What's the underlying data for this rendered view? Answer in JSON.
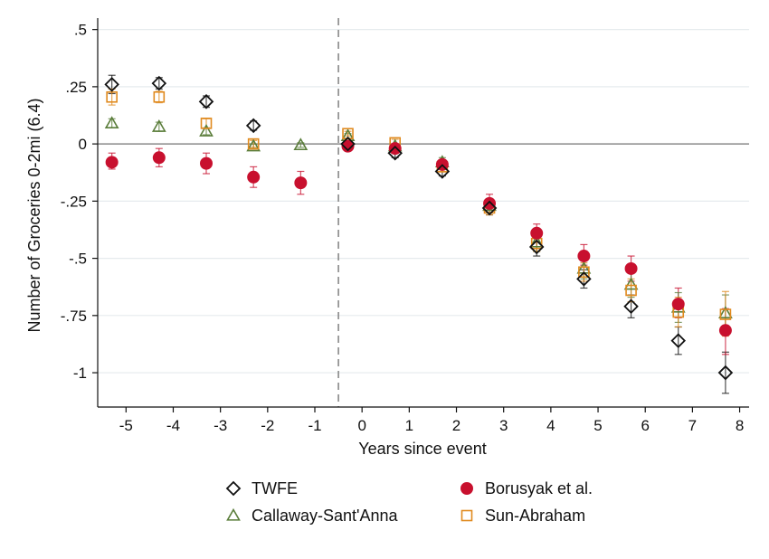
{
  "chart_data": {
    "type": "scatter",
    "title": "",
    "xlabel": "Years since event",
    "ylabel": "Number of Groceries 0-2mi (6.4)",
    "xlim": [
      -5.6,
      8.2
    ],
    "ylim": [
      -1.15,
      0.55
    ],
    "x_ticks": [
      -5,
      -4,
      -3,
      -2,
      -1,
      0,
      1,
      2,
      3,
      4,
      5,
      6,
      7,
      8
    ],
    "x_tick_labels": [
      "-5",
      "-4",
      "-3",
      "-2",
      "-1",
      "0",
      "1",
      "2",
      "3",
      "4",
      "5",
      "6",
      "7",
      "8"
    ],
    "y_ticks": [
      0.5,
      0.25,
      0,
      -0.25,
      -0.5,
      -0.75,
      -1
    ],
    "y_tick_labels": [
      ".5",
      ".25",
      "0",
      "-.25",
      "-.5",
      "-.75",
      "-1"
    ],
    "grid": true,
    "zero_line": true,
    "event_line_x": -0.5,
    "legend_position": "bottom",
    "series": [
      {
        "name": "TWFE",
        "marker": "diamond",
        "color": "#111111",
        "points": [
          {
            "x": -5.3,
            "y": 0.26,
            "lo": 0.22,
            "hi": 0.3
          },
          {
            "x": -4.3,
            "y": 0.265,
            "lo": 0.24,
            "hi": 0.29
          },
          {
            "x": -3.3,
            "y": 0.185,
            "lo": 0.16,
            "hi": 0.21
          },
          {
            "x": -2.3,
            "y": 0.08,
            "lo": 0.06,
            "hi": 0.1
          },
          {
            "x": -0.3,
            "y": 0.0,
            "lo": -0.01,
            "hi": 0.01
          },
          {
            "x": 0.7,
            "y": -0.04,
            "lo": -0.06,
            "hi": -0.02
          },
          {
            "x": 1.7,
            "y": -0.12,
            "lo": -0.14,
            "hi": -0.1
          },
          {
            "x": 2.7,
            "y": -0.28,
            "lo": -0.31,
            "hi": -0.25
          },
          {
            "x": 3.7,
            "y": -0.45,
            "lo": -0.49,
            "hi": -0.41
          },
          {
            "x": 4.7,
            "y": -0.59,
            "lo": -0.63,
            "hi": -0.55
          },
          {
            "x": 5.7,
            "y": -0.71,
            "lo": -0.76,
            "hi": -0.66
          },
          {
            "x": 6.7,
            "y": -0.86,
            "lo": -0.92,
            "hi": -0.8
          },
          {
            "x": 7.7,
            "y": -1.0,
            "lo": -1.09,
            "hi": -0.91
          }
        ]
      },
      {
        "name": "Borusyak et al.",
        "marker": "circle",
        "color": "#c8102e",
        "points": [
          {
            "x": -5.3,
            "y": -0.08,
            "lo": -0.11,
            "hi": -0.04
          },
          {
            "x": -4.3,
            "y": -0.06,
            "lo": -0.1,
            "hi": -0.02
          },
          {
            "x": -3.3,
            "y": -0.085,
            "lo": -0.13,
            "hi": -0.04
          },
          {
            "x": -2.3,
            "y": -0.145,
            "lo": -0.19,
            "hi": -0.1
          },
          {
            "x": -1.3,
            "y": -0.17,
            "lo": -0.22,
            "hi": -0.12
          },
          {
            "x": -0.3,
            "y": -0.01,
            "lo": -0.02,
            "hi": 0.0
          },
          {
            "x": 0.7,
            "y": -0.02,
            "lo": -0.04,
            "hi": 0.0
          },
          {
            "x": 1.7,
            "y": -0.09,
            "lo": -0.11,
            "hi": -0.07
          },
          {
            "x": 2.7,
            "y": -0.26,
            "lo": -0.29,
            "hi": -0.22
          },
          {
            "x": 3.7,
            "y": -0.39,
            "lo": -0.43,
            "hi": -0.35
          },
          {
            "x": 4.7,
            "y": -0.49,
            "lo": -0.53,
            "hi": -0.44
          },
          {
            "x": 5.7,
            "y": -0.545,
            "lo": -0.6,
            "hi": -0.49
          },
          {
            "x": 6.7,
            "y": -0.7,
            "lo": -0.76,
            "hi": -0.63
          },
          {
            "x": 7.7,
            "y": -0.815,
            "lo": -0.92,
            "hi": -0.72
          }
        ]
      },
      {
        "name": "Callaway-Sant'Anna",
        "marker": "triangle",
        "color": "#5a7d3a",
        "points": [
          {
            "x": -5.3,
            "y": 0.09,
            "lo": 0.07,
            "hi": 0.11
          },
          {
            "x": -4.3,
            "y": 0.075,
            "lo": 0.055,
            "hi": 0.095
          },
          {
            "x": -3.3,
            "y": 0.055,
            "lo": 0.04,
            "hi": 0.07
          },
          {
            "x": -2.3,
            "y": -0.01,
            "lo": -0.02,
            "hi": 0.0
          },
          {
            "x": -1.3,
            "y": -0.005,
            "lo": -0.015,
            "hi": 0.005
          },
          {
            "x": -0.3,
            "y": 0.035,
            "lo": 0.025,
            "hi": 0.045
          },
          {
            "x": 0.7,
            "y": -0.01,
            "lo": -0.02,
            "hi": 0.0
          },
          {
            "x": 1.7,
            "y": -0.08,
            "lo": -0.1,
            "hi": -0.06
          },
          {
            "x": 2.7,
            "y": -0.27,
            "lo": -0.3,
            "hi": -0.24
          },
          {
            "x": 3.7,
            "y": -0.43,
            "lo": -0.47,
            "hi": -0.39
          },
          {
            "x": 4.7,
            "y": -0.545,
            "lo": -0.59,
            "hi": -0.5
          },
          {
            "x": 5.7,
            "y": -0.615,
            "lo": -0.67,
            "hi": -0.56
          },
          {
            "x": 6.7,
            "y": -0.715,
            "lo": -0.78,
            "hi": -0.65
          },
          {
            "x": 7.7,
            "y": -0.74,
            "lo": -0.82,
            "hi": -0.66
          }
        ]
      },
      {
        "name": "Sun-Abraham",
        "marker": "square",
        "color": "#e08a1e",
        "points": [
          {
            "x": -5.3,
            "y": 0.205,
            "lo": 0.17,
            "hi": 0.24
          },
          {
            "x": -4.3,
            "y": 0.205,
            "lo": 0.18,
            "hi": 0.23
          },
          {
            "x": -3.3,
            "y": 0.09,
            "lo": 0.07,
            "hi": 0.11
          },
          {
            "x": -2.3,
            "y": 0.0,
            "lo": -0.015,
            "hi": 0.015
          },
          {
            "x": -0.3,
            "y": 0.045,
            "lo": 0.035,
            "hi": 0.055
          },
          {
            "x": 0.7,
            "y": 0.005,
            "lo": -0.01,
            "hi": 0.02
          },
          {
            "x": 1.7,
            "y": -0.1,
            "lo": -0.12,
            "hi": -0.08
          },
          {
            "x": 2.7,
            "y": -0.28,
            "lo": -0.31,
            "hi": -0.25
          },
          {
            "x": 3.7,
            "y": -0.435,
            "lo": -0.47,
            "hi": -0.4
          },
          {
            "x": 4.7,
            "y": -0.56,
            "lo": -0.6,
            "hi": -0.52
          },
          {
            "x": 5.7,
            "y": -0.64,
            "lo": -0.69,
            "hi": -0.59
          },
          {
            "x": 6.7,
            "y": -0.735,
            "lo": -0.8,
            "hi": -0.67
          },
          {
            "x": 7.7,
            "y": -0.745,
            "lo": -0.84,
            "hi": -0.645
          }
        ]
      }
    ]
  }
}
